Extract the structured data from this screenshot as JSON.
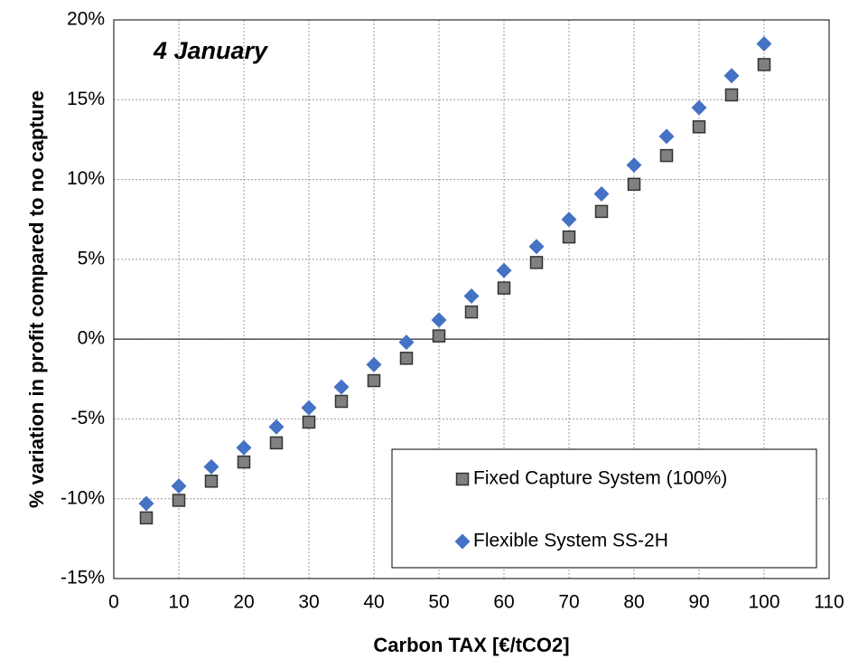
{
  "chart_data": {
    "type": "scatter",
    "annotation": "4 January",
    "x_label": "Carbon TAX [€/tCO2]",
    "y_label": "% variation in profit compared to no capture",
    "x": [
      5,
      10,
      15,
      20,
      25,
      30,
      35,
      40,
      45,
      50,
      55,
      60,
      65,
      70,
      75,
      80,
      85,
      90,
      95,
      100
    ],
    "series": [
      {
        "name": "Fixed Capture System (100%)",
        "color": "#808080",
        "marker": "square",
        "values": [
          -11.2,
          -10.1,
          -8.9,
          -7.7,
          -6.5,
          -5.2,
          -3.9,
          -2.6,
          -1.2,
          0.2,
          1.7,
          3.2,
          4.8,
          6.4,
          8.0,
          9.7,
          11.5,
          13.3,
          15.3,
          17.2
        ]
      },
      {
        "name": "Flexible System SS-2H",
        "color": "#4472c4",
        "marker": "diamond",
        "values": [
          -10.3,
          -9.2,
          -8.0,
          -6.8,
          -5.5,
          -4.3,
          -3.0,
          -1.6,
          -0.2,
          1.2,
          2.7,
          4.3,
          5.8,
          7.5,
          9.1,
          10.9,
          12.7,
          14.5,
          16.5,
          18.5
        ]
      }
    ],
    "xlim": [
      0,
      110
    ],
    "xticks": [
      0,
      10,
      20,
      30,
      40,
      50,
      60,
      70,
      80,
      90,
      100,
      110
    ],
    "ylim": [
      -15,
      20
    ],
    "yticks": [
      {
        "value": -15,
        "label": "-15%"
      },
      {
        "value": -10,
        "label": "-10%"
      },
      {
        "value": -5,
        "label": "-5%"
      },
      {
        "value": 0,
        "label": "0%"
      },
      {
        "value": 5,
        "label": "5%"
      },
      {
        "value": 10,
        "label": "10%"
      },
      {
        "value": 15,
        "label": "15%"
      },
      {
        "value": 20,
        "label": "20%"
      }
    ],
    "grid": true,
    "legend": "lower right"
  }
}
